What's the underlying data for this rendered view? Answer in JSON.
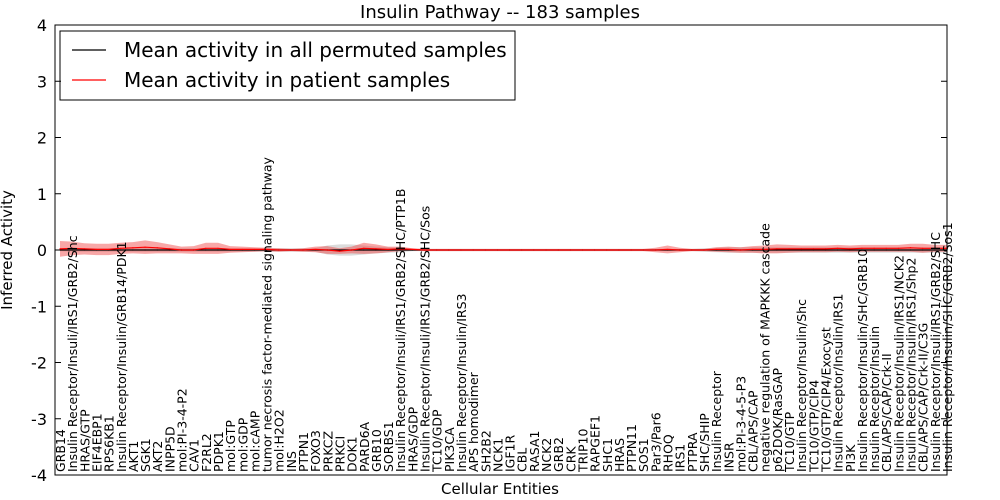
{
  "chart_data": {
    "type": "line",
    "title": "Insulin Pathway -- 183 samples",
    "xlabel": "Cellular Entities",
    "ylabel": "Inferred Activity",
    "ylim": [
      -4,
      4
    ],
    "yticks": [
      -4,
      -3,
      -2,
      -1,
      0,
      1,
      2,
      3,
      4
    ],
    "grid": false,
    "legend_position": "top-left",
    "categories": [
      "GRB14",
      "Insulin Receptor/Insuli/IRS1/GRB2/Shc",
      "HRAS/GTP",
      "EIF4EBP1",
      "RPS6KB1",
      "Insulin Receptor/Insulin/GRB14/PDK1",
      "AKT1",
      "SGK1",
      "AKT2",
      "INPP5D",
      "mol:PI-3-4-P2",
      "CAV1",
      "F2RL2",
      "PDPK1",
      "mol:GTP",
      "mol:GDP",
      "mol:cAMP",
      "tumor necrosis factor-mediated signaling pathway",
      "mol:H2O2",
      "INS",
      "PTPN1",
      "FOXO3",
      "PRKCZ",
      "PRKCI",
      "DOK1",
      "PARD6A",
      "GRB10",
      "SORBS1",
      "Insulin Receptor/Insuli/IRS1/GRB2/SHC/PTP1B",
      "HRAS/GDP",
      "Insulin Receptor/Insuli/IRS1/GRB2/SHC/Sos",
      "TC10/GDP",
      "PIK3CA",
      "Insulin Receptor/Insulin/IRS3",
      "APS homodimer",
      "SH2B2",
      "NCK1",
      "IGF1R",
      "CBL",
      "RASA1",
      "NCK2",
      "GRB2",
      "CRK",
      "TRIP10",
      "RAPGEF1",
      "SHC1",
      "HRAS",
      "PTPN11",
      "SOS1",
      "Par3/Par6",
      "RHOQ",
      "IRS1",
      "PTPRA",
      "SHC/SHIP",
      "Insulin Receptor",
      "INSR",
      "mol:PI-3-4-5-P3",
      "CBL/APS/CAP",
      "negative regulation of MAPKKK cascade",
      "p62DOK/RasGAP",
      "TC10/GTP",
      "Insulin Receptor/Insulin/Shc",
      "TC10/GTP/CIP4",
      "TC10/GTP/CIP4/Exocyst",
      "Insulin Receptor/Insulin/IRS1",
      "PI3K",
      "Insulin Receptor/Insulin/SHC/GRB10",
      "Insulin Receptor/Insulin",
      "CBL/APS/CAP/Crk-II",
      "Insulin Receptor/Insulin/IRS1/NCK2",
      "Insulin Receptor/Insulin/IRS1/Shp2",
      "CBL/APS/CAP/Crk-II/C3G",
      "Insulin Receptor/Insuli/IRS1/GRB2/SHC",
      "Insulin Receptor/Insulin/SHC/GRB2/Sos1"
    ],
    "series": [
      {
        "name": "Mean activity in all permuted samples",
        "color": "#000000",
        "values": [
          0.0,
          0.0,
          0.0,
          0.0,
          0.0,
          0.0,
          0.0,
          0.0,
          0.0,
          0.0,
          0.0,
          0.0,
          0.0,
          0.0,
          0.0,
          0.0,
          0.0,
          0.0,
          0.0,
          0.0,
          0.0,
          0.0,
          0.0,
          0.0,
          0.0,
          0.0,
          0.0,
          0.0,
          0.0,
          0.0,
          0.0,
          0.0,
          0.0,
          0.0,
          0.0,
          0.0,
          0.0,
          0.0,
          0.0,
          0.0,
          0.0,
          0.0,
          0.0,
          0.0,
          0.0,
          0.0,
          0.0,
          0.0,
          0.0,
          0.0,
          0.0,
          0.0,
          0.0,
          0.0,
          0.0,
          0.0,
          0.0,
          0.0,
          0.0,
          0.0,
          0.0,
          0.0,
          0.0,
          0.0,
          0.0,
          0.0,
          0.0,
          0.0,
          0.0,
          0.0,
          0.0,
          0.0,
          0.0,
          0.0
        ],
        "band": [
          0.02,
          0.03,
          0.03,
          0.03,
          0.03,
          0.03,
          0.03,
          0.03,
          0.03,
          0.03,
          0.03,
          0.03,
          0.03,
          0.03,
          0.03,
          0.03,
          0.03,
          0.03,
          0.03,
          0.03,
          0.03,
          0.03,
          0.08,
          0.1,
          0.1,
          0.08,
          0.06,
          0.05,
          0.04,
          0.02,
          0.02,
          0.02,
          0.02,
          0.02,
          0.02,
          0.02,
          0.02,
          0.02,
          0.02,
          0.02,
          0.02,
          0.02,
          0.02,
          0.02,
          0.02,
          0.02,
          0.02,
          0.02,
          0.02,
          0.02,
          0.02,
          0.02,
          0.02,
          0.03,
          0.04,
          0.05,
          0.05,
          0.05,
          0.05,
          0.05,
          0.05,
          0.05,
          0.05,
          0.05,
          0.05,
          0.05,
          0.05,
          0.05,
          0.05,
          0.05,
          0.05,
          0.05,
          0.05,
          0.05
        ]
      },
      {
        "name": "Mean activity in patient samples",
        "color": "#ff0000",
        "values": [
          0.02,
          0.03,
          0.02,
          0.01,
          0.01,
          0.03,
          0.04,
          0.05,
          0.04,
          0.02,
          0.0,
          0.0,
          0.03,
          0.03,
          0.01,
          0.01,
          0.01,
          0.01,
          0.0,
          0.0,
          0.0,
          0.01,
          0.0,
          -0.02,
          0.0,
          0.03,
          0.02,
          0.01,
          0.02,
          0.01,
          0.0,
          0.0,
          0.0,
          0.0,
          0.0,
          0.0,
          0.0,
          0.0,
          0.0,
          0.0,
          0.0,
          0.0,
          0.0,
          0.0,
          0.0,
          0.0,
          0.0,
          0.0,
          0.0,
          0.0,
          0.01,
          0.0,
          0.0,
          0.0,
          0.01,
          0.01,
          0.0,
          0.01,
          0.01,
          0.02,
          0.02,
          0.02,
          0.02,
          0.02,
          0.03,
          0.02,
          0.03,
          0.03,
          0.03,
          0.03,
          0.04,
          0.03,
          0.03,
          0.03
        ],
        "band": [
          0.14,
          0.12,
          0.1,
          0.1,
          0.1,
          0.1,
          0.1,
          0.12,
          0.1,
          0.08,
          0.06,
          0.07,
          0.1,
          0.1,
          0.06,
          0.05,
          0.04,
          0.03,
          0.03,
          0.02,
          0.03,
          0.05,
          0.07,
          0.05,
          0.06,
          0.1,
          0.08,
          0.05,
          0.04,
          0.02,
          0.02,
          0.02,
          0.02,
          0.02,
          0.02,
          0.02,
          0.02,
          0.02,
          0.02,
          0.02,
          0.02,
          0.02,
          0.02,
          0.02,
          0.02,
          0.02,
          0.02,
          0.02,
          0.02,
          0.04,
          0.07,
          0.04,
          0.02,
          0.02,
          0.04,
          0.05,
          0.05,
          0.06,
          0.07,
          0.08,
          0.07,
          0.06,
          0.06,
          0.06,
          0.06,
          0.06,
          0.06,
          0.06,
          0.06,
          0.06,
          0.07,
          0.08,
          0.06,
          0.06
        ]
      }
    ]
  }
}
